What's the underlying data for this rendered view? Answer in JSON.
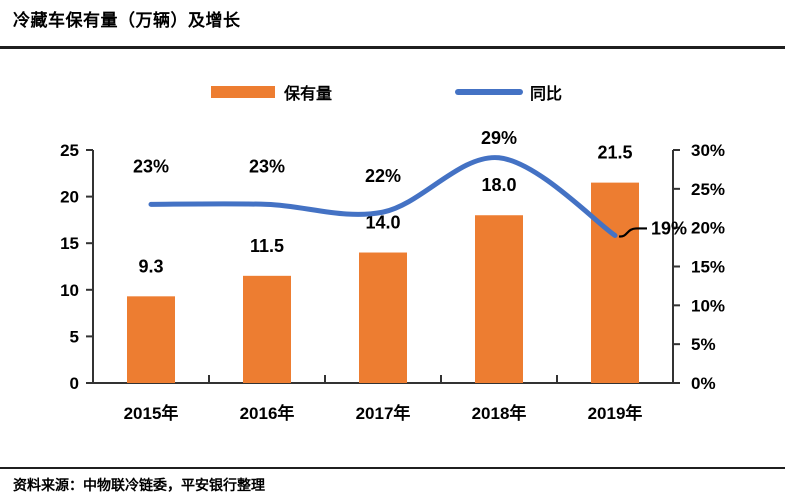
{
  "title": "冷藏车保有量（万辆）及增长",
  "source_note": "资料来源：中物联冷链委，平安银行整理",
  "colors": {
    "bar": "#ED7D31",
    "line": "#4472C4",
    "axis": "#333333",
    "text": "#000000",
    "leader": "#000000"
  },
  "legend": {
    "position": "top",
    "items": [
      {
        "label": "保有量",
        "marker": "bar-swatch"
      },
      {
        "label": "同比",
        "marker": "line-swatch"
      }
    ]
  },
  "chart_data": {
    "type": "bar",
    "subtype": "combo-bar-line",
    "title": "冷藏车保有量（万辆）及增长",
    "categories": [
      "2015年",
      "2016年",
      "2017年",
      "2018年",
      "2019年"
    ],
    "series": [
      {
        "name": "保有量",
        "type": "bar",
        "axis": "left",
        "color": "#ED7D31",
        "values": [
          9.3,
          11.5,
          14.0,
          18.0,
          21.5
        ],
        "labels": [
          "9.3",
          "11.5",
          "14.0",
          "18.0",
          "21.5"
        ]
      },
      {
        "name": "同比",
        "type": "line",
        "axis": "right",
        "color": "#4472C4",
        "smooth": true,
        "values": [
          23,
          23,
          22,
          29,
          19
        ],
        "labels": [
          "23%",
          "23%",
          "22%",
          "29%",
          "19%"
        ],
        "last_label_callout": true
      }
    ],
    "left_axis": {
      "min": 0,
      "max": 25,
      "step": 5,
      "ticks": [
        "0",
        "5",
        "10",
        "15",
        "20",
        "25"
      ]
    },
    "right_axis": {
      "min": 0,
      "max": 30,
      "step": 5,
      "ticks": [
        "0%",
        "5%",
        "10%",
        "15%",
        "20%",
        "25%",
        "30%"
      ]
    },
    "xlabel": "",
    "ylabel": "",
    "grid": false,
    "legend_position": "top"
  }
}
